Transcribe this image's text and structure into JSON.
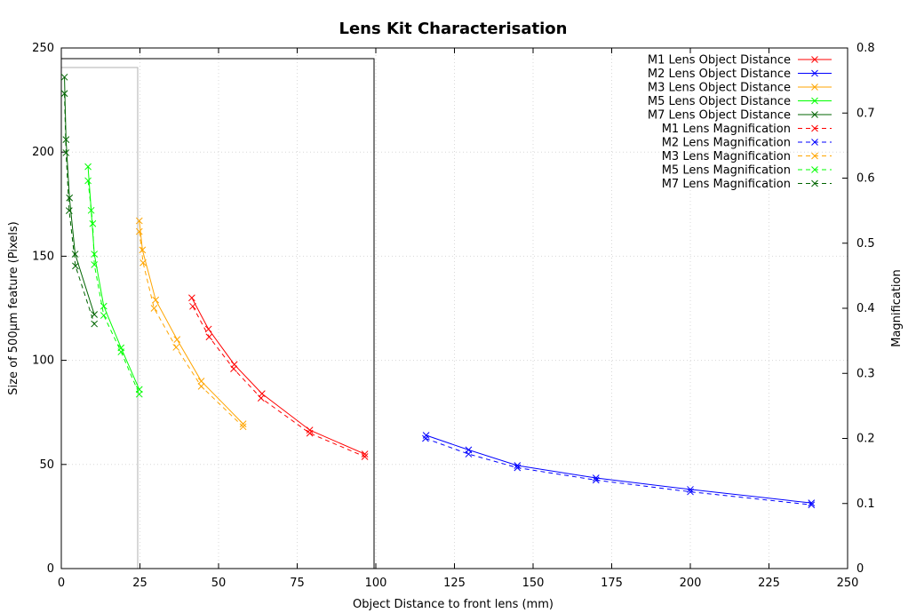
{
  "chart_data": {
    "type": "line",
    "title": "Lens Kit Characterisation",
    "xlabel": "Object Distance to front lens (mm)",
    "ylabel": "Size of 500μm feature (Pixels)",
    "y2label": "Magnification",
    "xlim": [
      0,
      250
    ],
    "ylim": [
      0,
      250
    ],
    "y2lim": [
      0,
      0.8
    ],
    "xticks": [
      "0",
      "25",
      "50",
      "75",
      "100",
      "125",
      "150",
      "175",
      "200",
      "225",
      "250"
    ],
    "yticks": [
      "0",
      "50",
      "100",
      "150",
      "200",
      "250"
    ],
    "y2ticks": [
      "0",
      "0.1",
      "0.2",
      "0.3",
      "0.4",
      "0.5",
      "0.6",
      "0.7",
      "0.8"
    ],
    "grid": true,
    "legend_position": "top-right",
    "series": [
      {
        "name": "M1 Lens Object Distance",
        "color": "#ff0000",
        "style": "solid",
        "axis": "y",
        "x": [
          41.5,
          46.8,
          55,
          63.8,
          79,
          96.5
        ],
        "y": [
          130,
          115,
          98,
          84,
          66.5,
          55
        ]
      },
      {
        "name": "M2 Lens Object Distance",
        "color": "#0000ff",
        "style": "solid",
        "axis": "y",
        "x": [
          116,
          129.5,
          145,
          170,
          200,
          238.5
        ],
        "y": [
          64,
          57,
          49.5,
          43.5,
          38,
          31.5
        ]
      },
      {
        "name": "M3 Lens Object Distance",
        "color": "#ffa500",
        "style": "solid",
        "axis": "y",
        "x": [
          24.8,
          25.8,
          30,
          36.8,
          44.5,
          57.8
        ],
        "y": [
          167,
          153,
          129,
          110,
          90,
          69.5
        ]
      },
      {
        "name": "M5 Lens Object Distance",
        "color": "#00ff00",
        "style": "solid",
        "axis": "y",
        "x": [
          8.5,
          9.5,
          10.5,
          13.5,
          19,
          24.8
        ],
        "y": [
          193,
          172,
          151,
          126,
          106,
          86
        ]
      },
      {
        "name": "M7 Lens Object Distance",
        "color": "#006400",
        "style": "solid",
        "axis": "y",
        "x": [
          1,
          1.5,
          2.6,
          4.4,
          10.5
        ],
        "y": [
          236,
          206,
          178,
          151,
          122
        ]
      },
      {
        "name": "M1 Lens Magnification",
        "color": "#ff0000",
        "style": "dashed",
        "axis": "y2",
        "x": [
          41.8,
          47,
          54.8,
          63.5,
          79,
          96.5
        ],
        "y": [
          0.403,
          0.356,
          0.307,
          0.262,
          0.208,
          0.172
        ]
      },
      {
        "name": "M2 Lens Magnification",
        "color": "#0000ff",
        "style": "dashed",
        "axis": "y2",
        "x": [
          115.8,
          129.5,
          145,
          170,
          200,
          238.5
        ],
        "y": [
          0.2,
          0.176,
          0.155,
          0.136,
          0.118,
          0.098
        ]
      },
      {
        "name": "M3 Lens Magnification",
        "color": "#ffa500",
        "style": "dashed",
        "axis": "y2",
        "x": [
          24.8,
          26,
          29.5,
          36.5,
          44.5,
          57.8
        ],
        "y": [
          0.518,
          0.47,
          0.4,
          0.34,
          0.28,
          0.218
        ]
      },
      {
        "name": "M5 Lens Magnification",
        "color": "#00ff00",
        "style": "dashed",
        "axis": "y2",
        "x": [
          8.5,
          10,
          10.5,
          13.5,
          19,
          24.8
        ],
        "y": [
          0.596,
          0.53,
          0.467,
          0.389,
          0.333,
          0.268
        ]
      },
      {
        "name": "M7 Lens Magnification",
        "color": "#006400",
        "style": "dashed",
        "axis": "y2",
        "x": [
          1,
          1.5,
          2.5,
          4.5,
          10.5
        ],
        "y": [
          0.73,
          0.639,
          0.55,
          0.465,
          0.376
        ]
      }
    ]
  }
}
